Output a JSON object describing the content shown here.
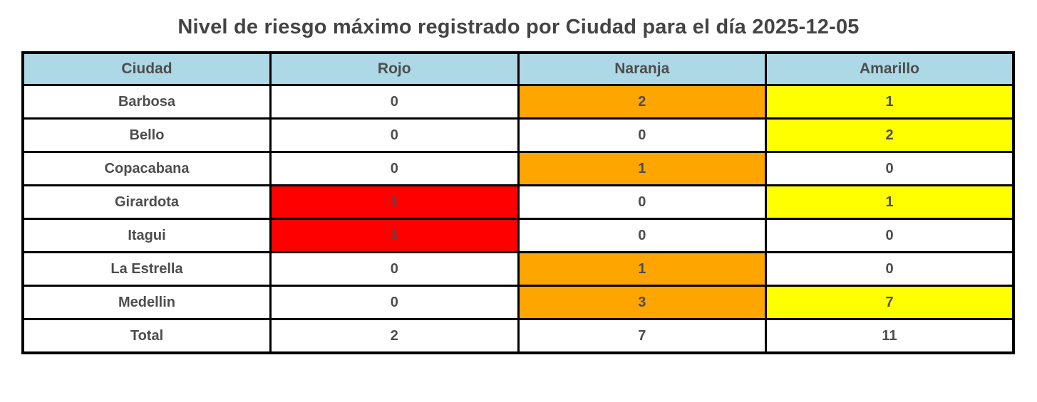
{
  "title": "Nivel de riesgo máximo registrado por Ciudad para el día 2025-12-05",
  "colors": {
    "header_bg": "#ADD8E6",
    "red": "#FF0000",
    "orange": "#FFA500",
    "yellow": "#FFFF00",
    "white": "#FFFFFF",
    "text": "#4D4D4D",
    "border": "#000000"
  },
  "table": {
    "headers": [
      "Ciudad",
      "Rojo",
      "Naranja",
      "Amarillo"
    ],
    "rows": [
      {
        "city": "Barbosa",
        "values": [
          "0",
          "2",
          "1"
        ],
        "cell_colors": [
          "white",
          "orange",
          "yellow"
        ]
      },
      {
        "city": "Bello",
        "values": [
          "0",
          "0",
          "2"
        ],
        "cell_colors": [
          "white",
          "white",
          "yellow"
        ]
      },
      {
        "city": "Copacabana",
        "values": [
          "0",
          "1",
          "0"
        ],
        "cell_colors": [
          "white",
          "orange",
          "white"
        ]
      },
      {
        "city": "Girardota",
        "values": [
          "1",
          "0",
          "1"
        ],
        "cell_colors": [
          "red",
          "white",
          "yellow"
        ]
      },
      {
        "city": "Itagui",
        "values": [
          "1",
          "0",
          "0"
        ],
        "cell_colors": [
          "red",
          "white",
          "white"
        ]
      },
      {
        "city": "La Estrella",
        "values": [
          "0",
          "1",
          "0"
        ],
        "cell_colors": [
          "white",
          "orange",
          "white"
        ]
      },
      {
        "city": "Medellin",
        "values": [
          "0",
          "3",
          "7"
        ],
        "cell_colors": [
          "white",
          "orange",
          "yellow"
        ]
      },
      {
        "city": "Total",
        "values": [
          "2",
          "7",
          "11"
        ],
        "cell_colors": [
          "white",
          "white",
          "white"
        ]
      }
    ]
  },
  "chart_data": {
    "type": "table",
    "title": "Nivel de riesgo máximo registrado por Ciudad para el día 2025-12-05",
    "columns": [
      "Ciudad",
      "Rojo",
      "Naranja",
      "Amarillo"
    ],
    "rows": [
      [
        "Barbosa",
        0,
        2,
        1
      ],
      [
        "Bello",
        0,
        0,
        2
      ],
      [
        "Copacabana",
        0,
        1,
        0
      ],
      [
        "Girardota",
        1,
        0,
        1
      ],
      [
        "Itagui",
        1,
        0,
        0
      ],
      [
        "La Estrella",
        0,
        1,
        0
      ],
      [
        "Medellin",
        0,
        3,
        7
      ],
      [
        "Total",
        2,
        7,
        11
      ]
    ],
    "cell_highlight_rule": "non-zero counts colored by risk level: Rojo=red, Naranja=orange, Amarillo=yellow; Total row uncolored",
    "legend_position": "none",
    "grid": true
  }
}
